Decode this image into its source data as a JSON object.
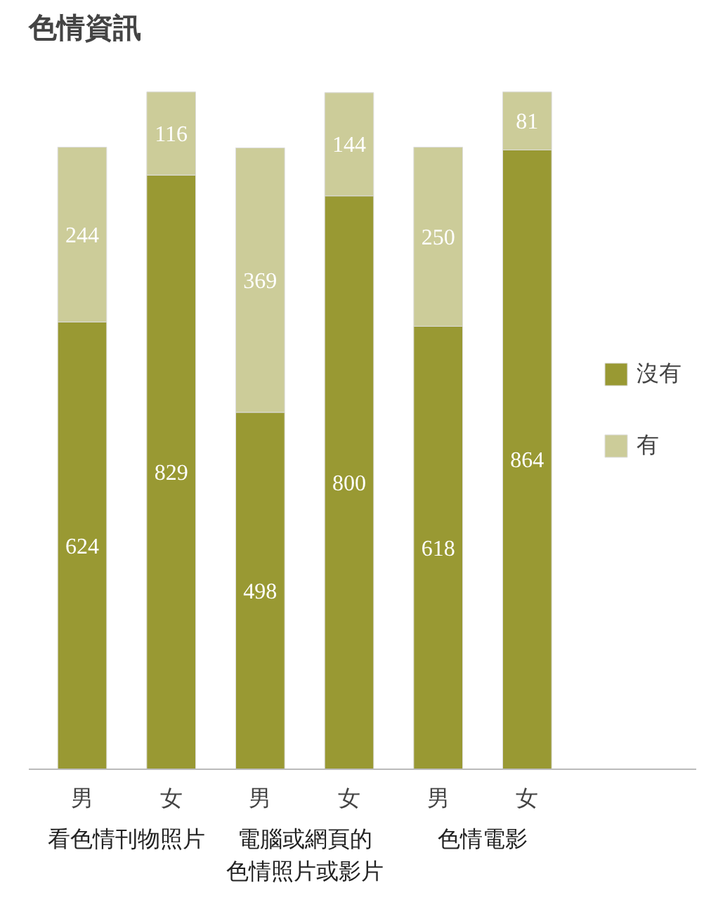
{
  "chart_data": {
    "type": "bar",
    "title": "色情資訊",
    "stacked": true,
    "data_labels": true,
    "legend": "right",
    "categories": [
      "男",
      "女",
      "男",
      "女",
      "男",
      "女"
    ],
    "annotations": [
      "看色情刊物照片",
      "電腦或網頁的色情照片或影片",
      "色情電影"
    ],
    "series": [
      {
        "name": "沒有",
        "color": "#999933",
        "values": [
          624,
          829,
          498,
          800,
          618,
          864
        ]
      },
      {
        "name": "有",
        "color": "#cccc99",
        "values": [
          244,
          116,
          369,
          144,
          250,
          81
        ]
      }
    ]
  }
}
